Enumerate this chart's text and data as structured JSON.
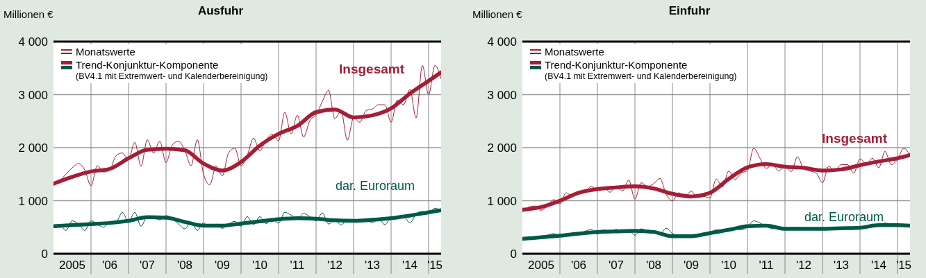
{
  "chart_data": [
    {
      "type": "line",
      "title": "Ausfuhr",
      "ylabel": "Millionen €",
      "x": [
        "2005-01",
        "2005-03",
        "2005-05",
        "2005-07",
        "2005-09",
        "2005-11",
        "2006-01",
        "2006-03",
        "2006-05",
        "2006-07",
        "2006-09",
        "2006-11",
        "2007-01",
        "2007-03",
        "2007-05",
        "2007-07",
        "2007-09",
        "2007-11",
        "2008-01",
        "2008-03",
        "2008-05",
        "2008-07",
        "2008-09",
        "2008-11",
        "2009-01",
        "2009-03",
        "2009-05",
        "2009-07",
        "2009-09",
        "2009-11",
        "2010-01",
        "2010-03",
        "2010-05",
        "2010-07",
        "2010-09",
        "2010-11",
        "2011-01",
        "2011-03",
        "2011-05",
        "2011-07",
        "2011-09",
        "2011-11",
        "2012-01",
        "2012-03",
        "2012-05",
        "2012-07",
        "2012-09",
        "2012-11",
        "2013-01",
        "2013-03",
        "2013-05",
        "2013-07",
        "2013-09",
        "2013-11",
        "2014-01",
        "2014-03",
        "2014-05",
        "2014-07",
        "2014-09",
        "2014-11",
        "2015-01",
        "2015-03",
        "2015-05"
      ],
      "series": [
        {
          "name": "Monatswerte",
          "color": "#a51e36",
          "values": [
            1290,
            1380,
            1500,
            1620,
            1700,
            1580,
            1280,
            1660,
            1540,
            1580,
            1850,
            1900,
            1780,
            2100,
            1650,
            2150,
            1900,
            2120,
            1720,
            2050,
            2120,
            1950,
            1660,
            2150,
            1500,
            1300,
            1650,
            1470,
            1900,
            1990,
            1660,
            1860,
            2180,
            1940,
            2150,
            2250,
            2130,
            2670,
            2260,
            2610,
            2200,
            2510,
            2620,
            2870,
            3080,
            2550,
            2690,
            2140,
            2560,
            2480,
            2700,
            2730,
            2810,
            2810,
            2480,
            2900,
            2810,
            3100,
            2560,
            3550,
            3000,
            3550,
            3300
          ]
        },
        {
          "color": "#005a46",
          "values": [
            500,
            540,
            440,
            620,
            560,
            440,
            620,
            560,
            500,
            600,
            600,
            780,
            600,
            780,
            520,
            700,
            680,
            640,
            720,
            660,
            560,
            470,
            600,
            440,
            580,
            500,
            560,
            480,
            560,
            610,
            520,
            700,
            550,
            700,
            570,
            650,
            580,
            780,
            730,
            650,
            760,
            700,
            620,
            770,
            560,
            640,
            540,
            650,
            620,
            610,
            650,
            580,
            660,
            550,
            680,
            700,
            700,
            580,
            750,
            800,
            760,
            860,
            800
          ]
        },
        {
          "name": "Trend-Konjunktur-Komponente\n(BV4.1 mit Extremwert- und Kalenderbereinigung)",
          "color": "#a51e36",
          "x": [
            "2005-01",
            "2005-07",
            "2006-01",
            "2006-07",
            "2007-01",
            "2007-07",
            "2008-01",
            "2008-07",
            "2009-01",
            "2009-07",
            "2010-01",
            "2010-07",
            "2011-01",
            "2011-07",
            "2012-01",
            "2012-07",
            "2013-01",
            "2013-07",
            "2014-01",
            "2014-07",
            "2015-01",
            "2015-05"
          ],
          "values": [
            1320,
            1450,
            1550,
            1600,
            1800,
            1960,
            1980,
            1950,
            1700,
            1570,
            1730,
            2040,
            2260,
            2410,
            2670,
            2720,
            2570,
            2610,
            2740,
            3020,
            3260,
            3420
          ]
        },
        {
          "color": "#005a46",
          "x": [
            "2005-01",
            "2005-07",
            "2006-01",
            "2006-07",
            "2007-01",
            "2007-07",
            "2008-01",
            "2008-07",
            "2009-01",
            "2009-07",
            "2010-01",
            "2010-07",
            "2011-01",
            "2011-07",
            "2012-01",
            "2012-07",
            "2013-01",
            "2013-07",
            "2014-01",
            "2014-07",
            "2015-01",
            "2015-05"
          ],
          "values": [
            520,
            540,
            560,
            580,
            620,
            690,
            680,
            600,
            530,
            530,
            570,
            610,
            650,
            670,
            660,
            630,
            620,
            640,
            670,
            720,
            780,
            820
          ]
        }
      ],
      "annotations": [
        "Insgesamt",
        "dar. Euroraum"
      ],
      "xlim": [
        "2005-01",
        "2015-05"
      ],
      "xticks": [
        {
          "value": "2005-07",
          "label": "2005"
        },
        {
          "value": "2006-01",
          "label": null
        },
        {
          "value": "2006-07",
          "label": "'06"
        },
        {
          "value": "2007-01",
          "label": null
        },
        {
          "value": "2007-07",
          "label": "'07"
        },
        {
          "value": "2008-01",
          "label": null
        },
        {
          "value": "2008-07",
          "label": "'08"
        },
        {
          "value": "2009-01",
          "label": null
        },
        {
          "value": "2009-07",
          "label": "'09"
        },
        {
          "value": "2010-01",
          "label": null
        },
        {
          "value": "2010-07",
          "label": "'10"
        },
        {
          "value": "2011-01",
          "label": null
        },
        {
          "value": "2011-07",
          "label": "'11"
        },
        {
          "value": "2012-01",
          "label": null
        },
        {
          "value": "2012-07",
          "label": "'12"
        },
        {
          "value": "2013-01",
          "label": null
        },
        {
          "value": "2013-07",
          "label": "'13"
        },
        {
          "value": "2014-01",
          "label": null
        },
        {
          "value": "2014-07",
          "label": "'14"
        },
        {
          "value": "2015-01",
          "label": null
        },
        {
          "value": "2015-03",
          "label": "'15"
        }
      ],
      "ylim": [
        0,
        4000
      ],
      "yticks": [
        0,
        {
          "value": 1000,
          "label": "1 000"
        },
        {
          "value": 2000,
          "label": "2 000"
        },
        {
          "value": 3000,
          "label": "3 000"
        },
        {
          "value": 4000,
          "label": "4 000"
        }
      ],
      "grid": true,
      "legend": "top left"
    },
    {
      "type": "line",
      "title": "Einfuhr",
      "ylabel": "Millionen €",
      "x": [
        "2005-01",
        "2005-03",
        "2005-05",
        "2005-07",
        "2005-09",
        "2005-11",
        "2006-01",
        "2006-03",
        "2006-05",
        "2006-07",
        "2006-09",
        "2006-11",
        "2007-01",
        "2007-03",
        "2007-05",
        "2007-07",
        "2007-09",
        "2007-11",
        "2008-01",
        "2008-03",
        "2008-05",
        "2008-07",
        "2008-09",
        "2008-11",
        "2009-01",
        "2009-03",
        "2009-05",
        "2009-07",
        "2009-09",
        "2009-11",
        "2010-01",
        "2010-03",
        "2010-05",
        "2010-07",
        "2010-09",
        "2010-11",
        "2011-01",
        "2011-03",
        "2011-05",
        "2011-07",
        "2011-09",
        "2011-11",
        "2012-01",
        "2012-03",
        "2012-05",
        "2012-07",
        "2012-09",
        "2012-11",
        "2013-01",
        "2013-03",
        "2013-05",
        "2013-07",
        "2013-09",
        "2013-11",
        "2014-01",
        "2014-03",
        "2014-05",
        "2014-07",
        "2014-09",
        "2014-11",
        "2015-01",
        "2015-03",
        "2015-05"
      ],
      "series": [
        {
          "name": "Monatswerte",
          "color": "#a51e36",
          "values": [
            780,
            880,
            900,
            820,
            900,
            1020,
            940,
            1150,
            1080,
            1180,
            1160,
            1270,
            1200,
            1260,
            1160,
            1280,
            1180,
            1390,
            1030,
            1340,
            1270,
            1320,
            1420,
            1120,
            1000,
            1150,
            1080,
            1180,
            1060,
            1080,
            1050,
            1410,
            1260,
            1560,
            1400,
            1520,
            1570,
            1990,
            1800,
            1610,
            1680,
            1560,
            1670,
            1550,
            1830,
            1600,
            1560,
            1520,
            1340,
            1650,
            1560,
            1680,
            1680,
            1520,
            1790,
            1690,
            1800,
            1620,
            1930,
            1680,
            1780,
            1990,
            1850
          ]
        },
        {
          "color": "#005a46",
          "values": [
            260,
            300,
            320,
            330,
            350,
            380,
            330,
            370,
            360,
            390,
            420,
            460,
            370,
            450,
            400,
            460,
            420,
            440,
            350,
            470,
            430,
            410,
            370,
            480,
            380,
            340,
            320,
            330,
            350,
            340,
            390,
            450,
            440,
            480,
            470,
            450,
            500,
            620,
            580,
            520,
            470,
            510,
            480,
            460,
            500,
            470,
            480,
            460,
            450,
            480,
            470,
            490,
            470,
            490,
            500,
            520,
            560,
            530,
            580,
            550,
            540,
            520,
            530
          ]
        },
        {
          "name": "Trend-Konjunktur-Komponente\n(BV4.1 mit Extremwert- und Kalenderbereinigung)",
          "color": "#a51e36",
          "x": [
            "2005-01",
            "2005-07",
            "2006-01",
            "2006-07",
            "2007-01",
            "2007-07",
            "2008-01",
            "2008-07",
            "2009-01",
            "2009-07",
            "2010-01",
            "2010-07",
            "2011-01",
            "2011-07",
            "2012-01",
            "2012-07",
            "2013-01",
            "2013-07",
            "2014-01",
            "2014-07",
            "2015-01",
            "2015-05"
          ],
          "values": [
            830,
            880,
            1000,
            1150,
            1220,
            1250,
            1270,
            1230,
            1130,
            1080,
            1150,
            1410,
            1630,
            1690,
            1640,
            1620,
            1570,
            1590,
            1670,
            1740,
            1800,
            1860
          ]
        },
        {
          "color": "#005a46",
          "x": [
            "2005-01",
            "2005-07",
            "2006-01",
            "2006-07",
            "2007-01",
            "2007-07",
            "2008-01",
            "2008-07",
            "2009-01",
            "2009-07",
            "2010-01",
            "2010-07",
            "2011-01",
            "2011-07",
            "2012-01",
            "2012-07",
            "2013-01",
            "2013-07",
            "2014-01",
            "2014-07",
            "2015-01",
            "2015-05"
          ],
          "values": [
            280,
            310,
            340,
            380,
            410,
            420,
            430,
            410,
            330,
            330,
            390,
            450,
            520,
            530,
            470,
            470,
            470,
            480,
            490,
            540,
            540,
            530
          ]
        }
      ],
      "annotations": [
        "Insgesamt",
        "dar. Euroraum"
      ],
      "xlim": [
        "2005-01",
        "2015-05"
      ],
      "xticks": [
        {
          "value": "2005-07",
          "label": "2005"
        },
        {
          "value": "2006-01",
          "label": null
        },
        {
          "value": "2006-07",
          "label": "'06"
        },
        {
          "value": "2007-01",
          "label": null
        },
        {
          "value": "2007-07",
          "label": "'07"
        },
        {
          "value": "2008-01",
          "label": null
        },
        {
          "value": "2008-07",
          "label": "'08"
        },
        {
          "value": "2009-01",
          "label": null
        },
        {
          "value": "2009-07",
          "label": "'09"
        },
        {
          "value": "2010-01",
          "label": null
        },
        {
          "value": "2010-07",
          "label": "'10"
        },
        {
          "value": "2011-01",
          "label": null
        },
        {
          "value": "2011-07",
          "label": "'11"
        },
        {
          "value": "2012-01",
          "label": null
        },
        {
          "value": "2012-07",
          "label": "'12"
        },
        {
          "value": "2013-01",
          "label": null
        },
        {
          "value": "2013-07",
          "label": "'13"
        },
        {
          "value": "2014-01",
          "label": null
        },
        {
          "value": "2014-07",
          "label": "'14"
        },
        {
          "value": "2015-01",
          "label": null
        },
        {
          "value": "2015-03",
          "label": "'15"
        }
      ],
      "ylim": [
        0,
        4000
      ],
      "yticks": [
        0,
        {
          "value": 1000,
          "label": "1 000"
        },
        {
          "value": 2000,
          "label": "2 000"
        },
        {
          "value": 3000,
          "label": "3 000"
        },
        {
          "value": 4000,
          "label": "4 000"
        }
      ],
      "grid": true,
      "legend": "top left"
    }
  ]
}
